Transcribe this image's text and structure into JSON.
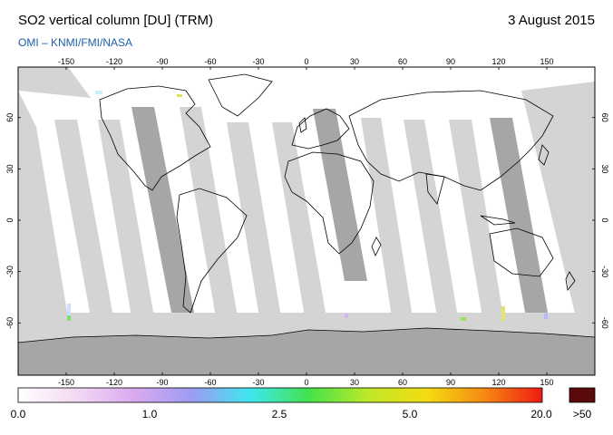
{
  "header": {
    "title": "SO2 vertical column [DU] (TRM)",
    "date": "3 August 2015",
    "source": "OMI  –  KNMI/FMI/NASA"
  },
  "map": {
    "lon_ticks": [
      "-150",
      "-120",
      "-90",
      "-60",
      "-30",
      "0",
      "30",
      "60",
      "90",
      "120",
      "150"
    ],
    "lat_ticks": [
      "60",
      "30",
      "0",
      "-30",
      "-60"
    ],
    "colors": {
      "ocean": "#ffffff",
      "data_gap_light": "#d4d4d4",
      "data_gap_dark": "#a6a6a6",
      "coastline": "#000000"
    }
  },
  "colorbar": {
    "labels": [
      "0.0",
      "1.0",
      "2.5",
      "5.0",
      "20.0",
      ">50"
    ],
    "stops": [
      "#ffffff",
      "#f3d9f3",
      "#d9a9f0",
      "#9b9cf2",
      "#3ee7ee",
      "#43e24b",
      "#bde82a",
      "#f3dc12",
      "#f58a12",
      "#ee1a12"
    ],
    "over_color": "#5a0a0a"
  }
}
